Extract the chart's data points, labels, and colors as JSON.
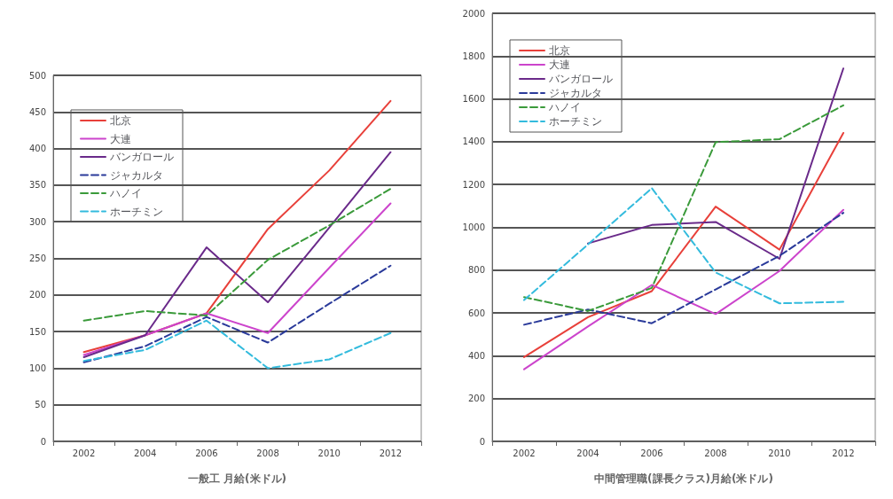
{
  "chart_data": [
    {
      "type": "line",
      "xlabel": "一般工 月給(米ドル)",
      "categories": [
        "2002",
        "2004",
        "2006",
        "2008",
        "2010",
        "2012"
      ],
      "ylim": [
        0,
        500
      ],
      "yticks": [
        0,
        50,
        100,
        150,
        200,
        250,
        300,
        350,
        400,
        450,
        500
      ],
      "grid": "y",
      "legend": "top left",
      "marker": "none",
      "series": [
        {
          "name": "北京",
          "color": "#e8403a",
          "line_style": "solid",
          "values": [
            122,
            145,
            175,
            290,
            370,
            465
          ]
        },
        {
          "name": "大連",
          "color": "#cc44cc",
          "line_style": "solid",
          "values": [
            118,
            145,
            175,
            148,
            237,
            325
          ]
        },
        {
          "name": "バンガロール",
          "color": "#6a2a8a",
          "line_style": "solid",
          "values": [
            115,
            145,
            265,
            190,
            292,
            395
          ]
        },
        {
          "name": "ジャカルタ",
          "color": "#2a3a9a",
          "line_style": "dashed",
          "values": [
            108,
            130,
            170,
            135,
            188,
            240
          ]
        },
        {
          "name": "ハノイ",
          "color": "#3a9a3a",
          "line_style": "dashed",
          "values": [
            165,
            178,
            172,
            248,
            295,
            345
          ]
        },
        {
          "name": "ホーチミン",
          "color": "#33bbdd",
          "line_style": "dashed",
          "values": [
            110,
            125,
            165,
            100,
            112,
            148
          ]
        }
      ]
    },
    {
      "type": "line",
      "xlabel": "中間管理職(課長クラス)月給(米ドル)",
      "categories": [
        "2002",
        "2004",
        "2006",
        "2008",
        "2010",
        "2012"
      ],
      "ylim": [
        0,
        2000
      ],
      "yticks": [
        0,
        200,
        400,
        600,
        800,
        1000,
        1200,
        1400,
        1600,
        1800,
        2000
      ],
      "grid": "y",
      "legend": "top left",
      "marker": "none",
      "series": [
        {
          "name": "北京",
          "color": "#e8403a",
          "line_style": "solid",
          "values": [
            394,
            580,
            702,
            1097,
            896,
            1441
          ]
        },
        {
          "name": "大連",
          "color": "#cc44cc",
          "line_style": "solid",
          "values": [
            337,
            537,
            731,
            595,
            796,
            1082
          ]
        },
        {
          "name": "バンガロール",
          "color": "#6a2a8a",
          "line_style": "solid",
          "values": [
            null,
            925,
            1011,
            1025,
            853,
            1742
          ]
        },
        {
          "name": "ジャカルタ",
          "color": "#2a3a9a",
          "line_style": "dashed",
          "values": [
            545,
            616,
            552,
            710,
            867,
            1068
          ]
        },
        {
          "name": "ハノイ",
          "color": "#3a9a3a",
          "line_style": "dashed",
          "values": [
            674,
            609,
            717,
            1398,
            1412,
            1570
          ]
        },
        {
          "name": "ホーチミン",
          "color": "#33bbdd",
          "line_style": "dashed",
          "values": [
            660,
            920,
            1183,
            789,
            645,
            652
          ]
        }
      ]
    }
  ]
}
